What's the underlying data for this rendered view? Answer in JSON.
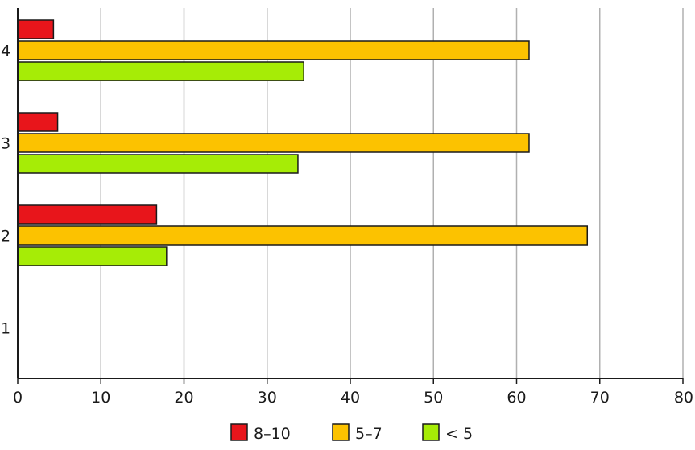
{
  "chart_data": {
    "type": "bar",
    "orientation": "horizontal",
    "title": "",
    "xlabel": "",
    "ylabel": "",
    "categories": [
      "1",
      "2",
      "3",
      "4"
    ],
    "series": [
      {
        "name": "8–10",
        "color": "#e8151b",
        "values": [
          0,
          16.7,
          4.8,
          4.3
        ]
      },
      {
        "name": "5–7",
        "color": "#fcc200",
        "values": [
          0,
          68.5,
          61.5,
          61.5
        ]
      },
      {
        "name": "< 5",
        "color": "#a6ec06",
        "values": [
          0,
          17.9,
          33.7,
          34.4
        ]
      }
    ],
    "xlim": [
      0,
      80
    ],
    "xticks": [
      0,
      10,
      20,
      30,
      40,
      50,
      60,
      70,
      80
    ],
    "grid": "vertical",
    "legend": "bottom-center"
  }
}
